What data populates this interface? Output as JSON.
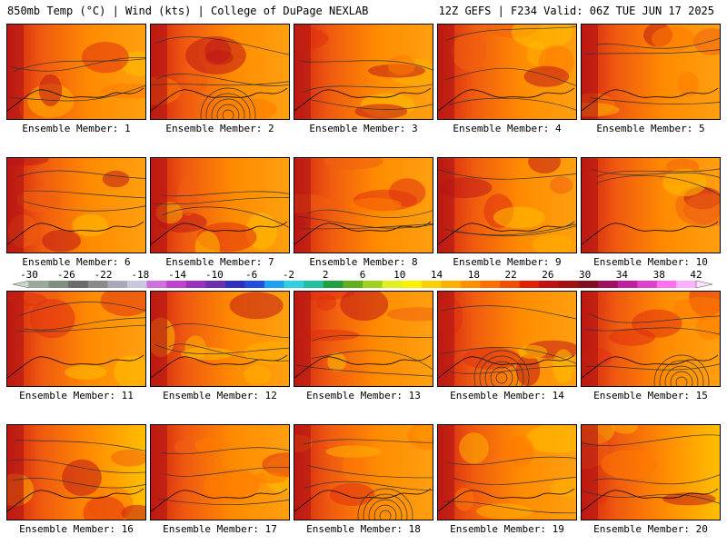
{
  "header": {
    "left": "850mb Temp (°C) | Wind (kts) | College of DuPage NEXLAB",
    "right": "12Z GEFS | F234 Valid: 06Z TUE JUN 17 2025"
  },
  "panels": [
    {
      "label": "Ensemble Member: 1"
    },
    {
      "label": "Ensemble Member: 2"
    },
    {
      "label": "Ensemble Member: 3"
    },
    {
      "label": "Ensemble Member: 4"
    },
    {
      "label": "Ensemble Member: 5"
    },
    {
      "label": "Ensemble Member: 6"
    },
    {
      "label": "Ensemble Member: 7"
    },
    {
      "label": "Ensemble Member: 8"
    },
    {
      "label": "Ensemble Member: 9"
    },
    {
      "label": "Ensemble Member: 10"
    },
    {
      "label": "Ensemble Member: 11"
    },
    {
      "label": "Ensemble Member: 12"
    },
    {
      "label": "Ensemble Member: 13"
    },
    {
      "label": "Ensemble Member: 14"
    },
    {
      "label": "Ensemble Member: 15"
    },
    {
      "label": "Ensemble Member: 16"
    },
    {
      "label": "Ensemble Member: 17"
    },
    {
      "label": "Ensemble Member: 18"
    },
    {
      "label": "Ensemble Member: 19"
    },
    {
      "label": "Ensemble Member: 20"
    }
  ],
  "colorbar": {
    "tick_labels": [
      "-30",
      "-26",
      "-22",
      "-18",
      "-14",
      "-10",
      "-6",
      "-2",
      "2",
      "6",
      "10",
      "14",
      "18",
      "22",
      "26",
      "30",
      "34",
      "38",
      "42"
    ],
    "colors": [
      "#9aa89a",
      "#7f8f7f",
      "#6b6b6b",
      "#8a8a8a",
      "#a8a8b8",
      "#c8c8e0",
      "#d070e0",
      "#c040d0",
      "#9a30c0",
      "#6a30b0",
      "#3030c0",
      "#2050e0",
      "#20a0f0",
      "#30d0e0",
      "#20c0a0",
      "#20a040",
      "#60b020",
      "#a0d020",
      "#e0f020",
      "#fff000",
      "#ffd000",
      "#ffb000",
      "#ff9000",
      "#ff7000",
      "#f05000",
      "#e02000",
      "#c01010",
      "#a01010",
      "#801020",
      "#a01060",
      "#c020a0",
      "#e040d0",
      "#ff70f0",
      "#ffb0ff"
    ]
  }
}
